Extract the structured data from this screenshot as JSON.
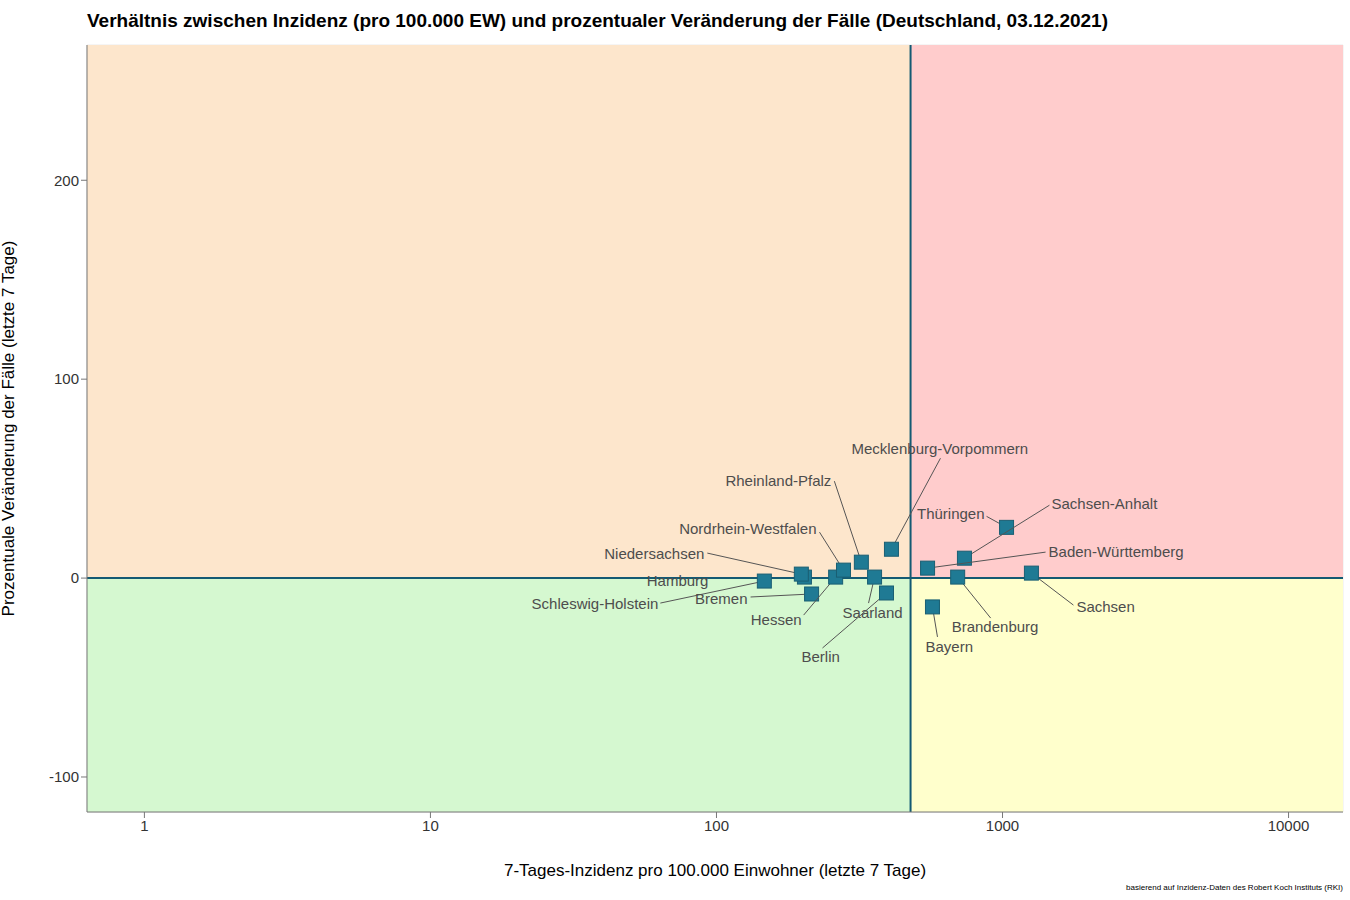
{
  "chart_data": {
    "type": "scatter",
    "title": "Verhältnis zwischen Inzidenz (pro 100.000 EW) und prozentualer Veränderung der Fälle (Deutschland, 03.12.2021)",
    "x_label": "7-Tages-Inzidenz pro 100.000 Einwohner (letzte 7 Tage)",
    "y_label": "Prozentuale Veränderung der Fälle (letzte 7 Tage)",
    "source": "basierend auf Inzidenz-Daten des Robert Koch Instituts (RKI)",
    "labels": [
      "Schleswig-Holstein",
      "Hamburg",
      "Niedersachsen",
      "Bremen",
      "Hessen",
      "Nordrhein-Westfalen",
      "Rheinland-Pfalz",
      "Saarland",
      "Berlin",
      "Mecklenburg-Vorpommern",
      "Thüringen",
      "Sachsen-Anhalt",
      "Baden-Württemberg",
      "Brandenburg",
      "Bayern",
      "Sachsen"
    ],
    "x": [
      147,
      203,
      198,
      215,
      261,
      278,
      321,
      357,
      393,
      409,
      1033,
      736,
      547,
      697,
      569,
      1262
    ],
    "values": [
      -1.5,
      0.5,
      2,
      -8,
      0.5,
      4,
      8,
      0.5,
      -7.5,
      14.5,
      25.5,
      10,
      5,
      0.5,
      -14.5,
      2.5
    ],
    "x_threshold": 477,
    "y_threshold": 0,
    "xlim": [
      0.63,
      15500
    ],
    "xticks": [
      1,
      10,
      100,
      1000,
      10000
    ],
    "ylim": [
      -117.6,
      268
    ],
    "yticks": [
      -100,
      0,
      100,
      200
    ],
    "log": "x",
    "grid": true,
    "color": "#1f7a94",
    "marker": "square"
  }
}
